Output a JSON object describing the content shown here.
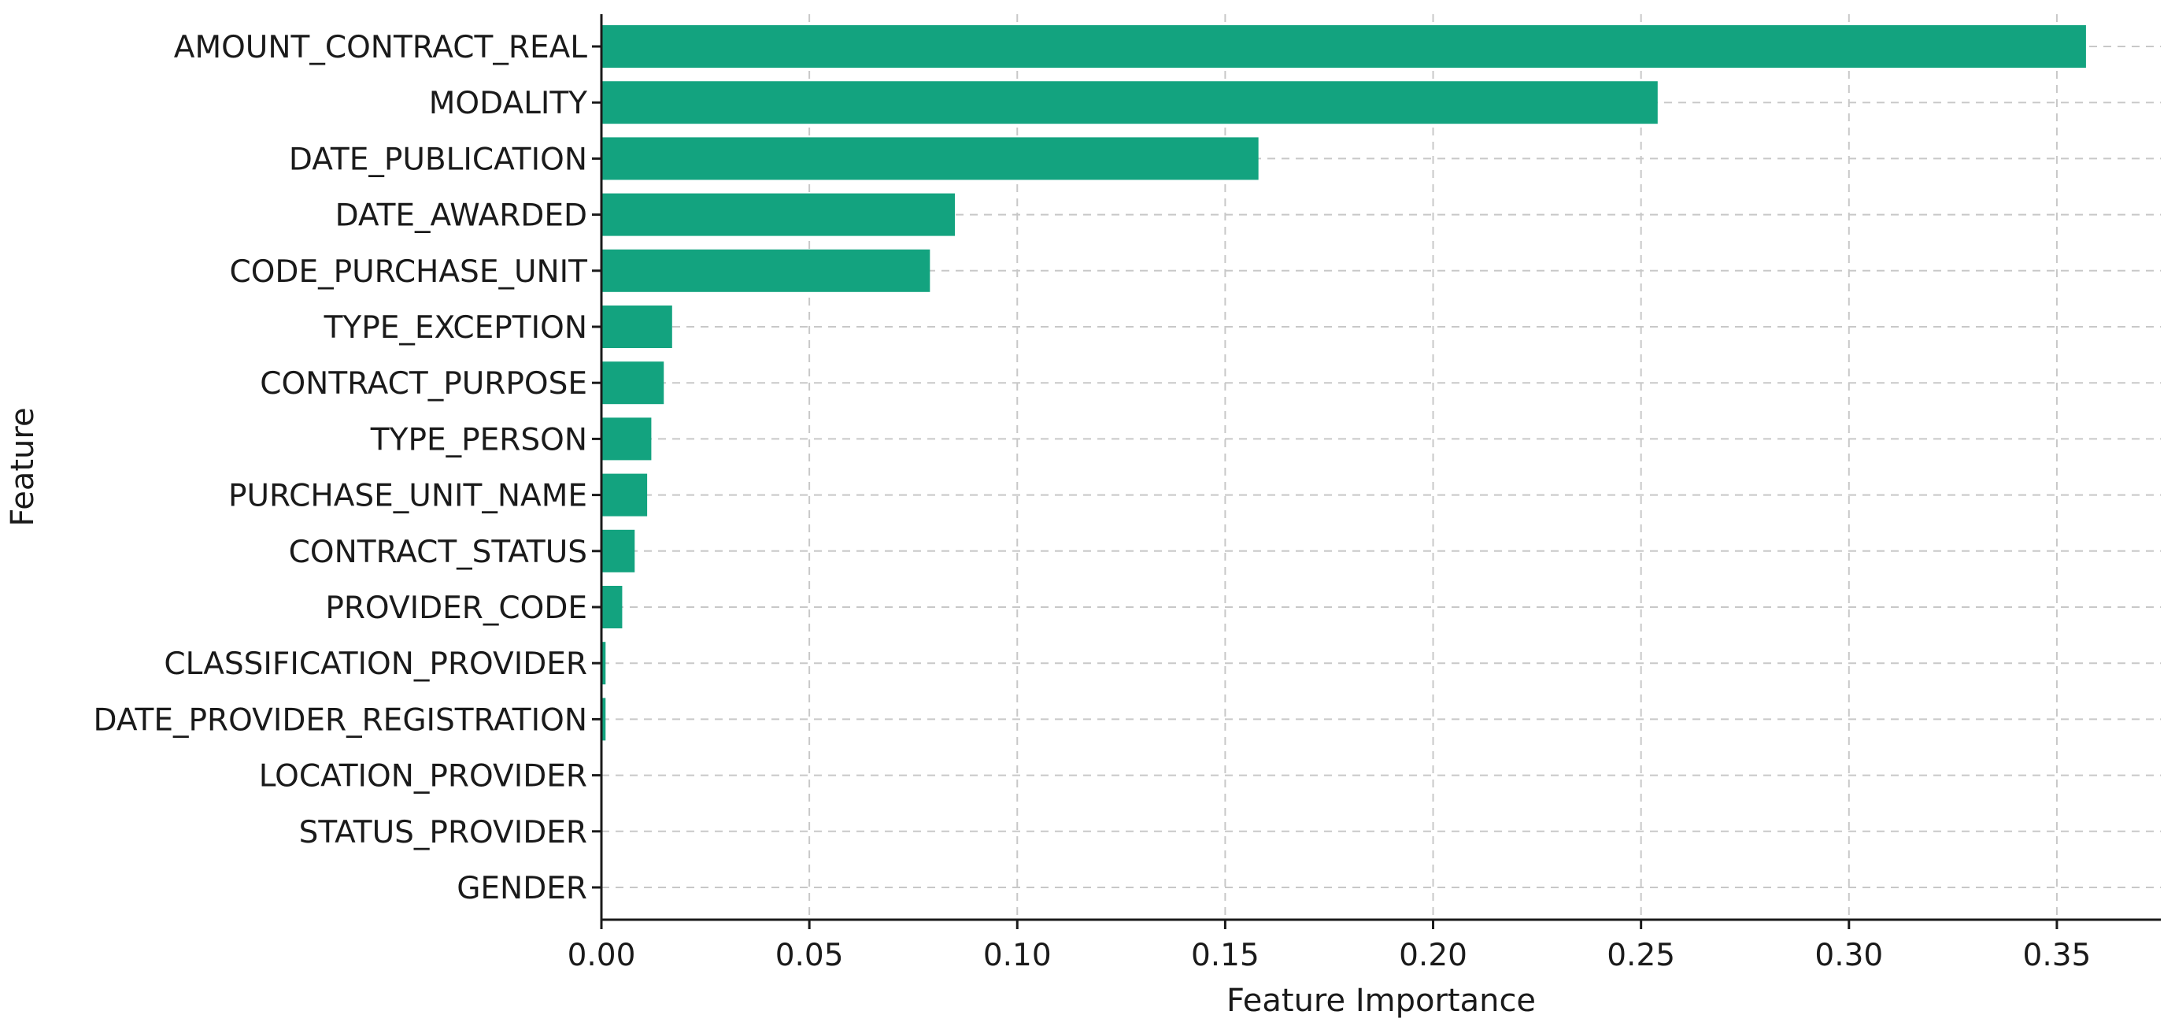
{
  "chart_data": {
    "type": "bar",
    "orientation": "horizontal",
    "categories": [
      "AMOUNT_CONTRACT_REAL",
      "MODALITY",
      "DATE_PUBLICATION",
      "DATE_AWARDED",
      "CODE_PURCHASE_UNIT",
      "TYPE_EXCEPTION",
      "CONTRACT_PURPOSE",
      "TYPE_PERSON",
      "PURCHASE_UNIT_NAME",
      "CONTRACT_STATUS",
      "PROVIDER_CODE",
      "CLASSIFICATION_PROVIDER",
      "DATE_PROVIDER_REGISTRATION",
      "LOCATION_PROVIDER",
      "STATUS_PROVIDER",
      "GENDER"
    ],
    "values": [
      0.357,
      0.254,
      0.158,
      0.085,
      0.079,
      0.017,
      0.015,
      0.012,
      0.011,
      0.008,
      0.005,
      0.001,
      0.001,
      0.0,
      0.0,
      0.0
    ],
    "xlabel": "Feature Importance",
    "ylabel": "Feature",
    "xlim": [
      0,
      0.375
    ],
    "xticks": [
      0.0,
      0.05,
      0.1,
      0.15,
      0.2,
      0.25,
      0.3,
      0.35
    ],
    "xtick_labels": [
      "0.00",
      "0.05",
      "0.10",
      "0.15",
      "0.20",
      "0.25",
      "0.30",
      "0.35"
    ],
    "grid": true,
    "bar_color": "#13a37f"
  }
}
